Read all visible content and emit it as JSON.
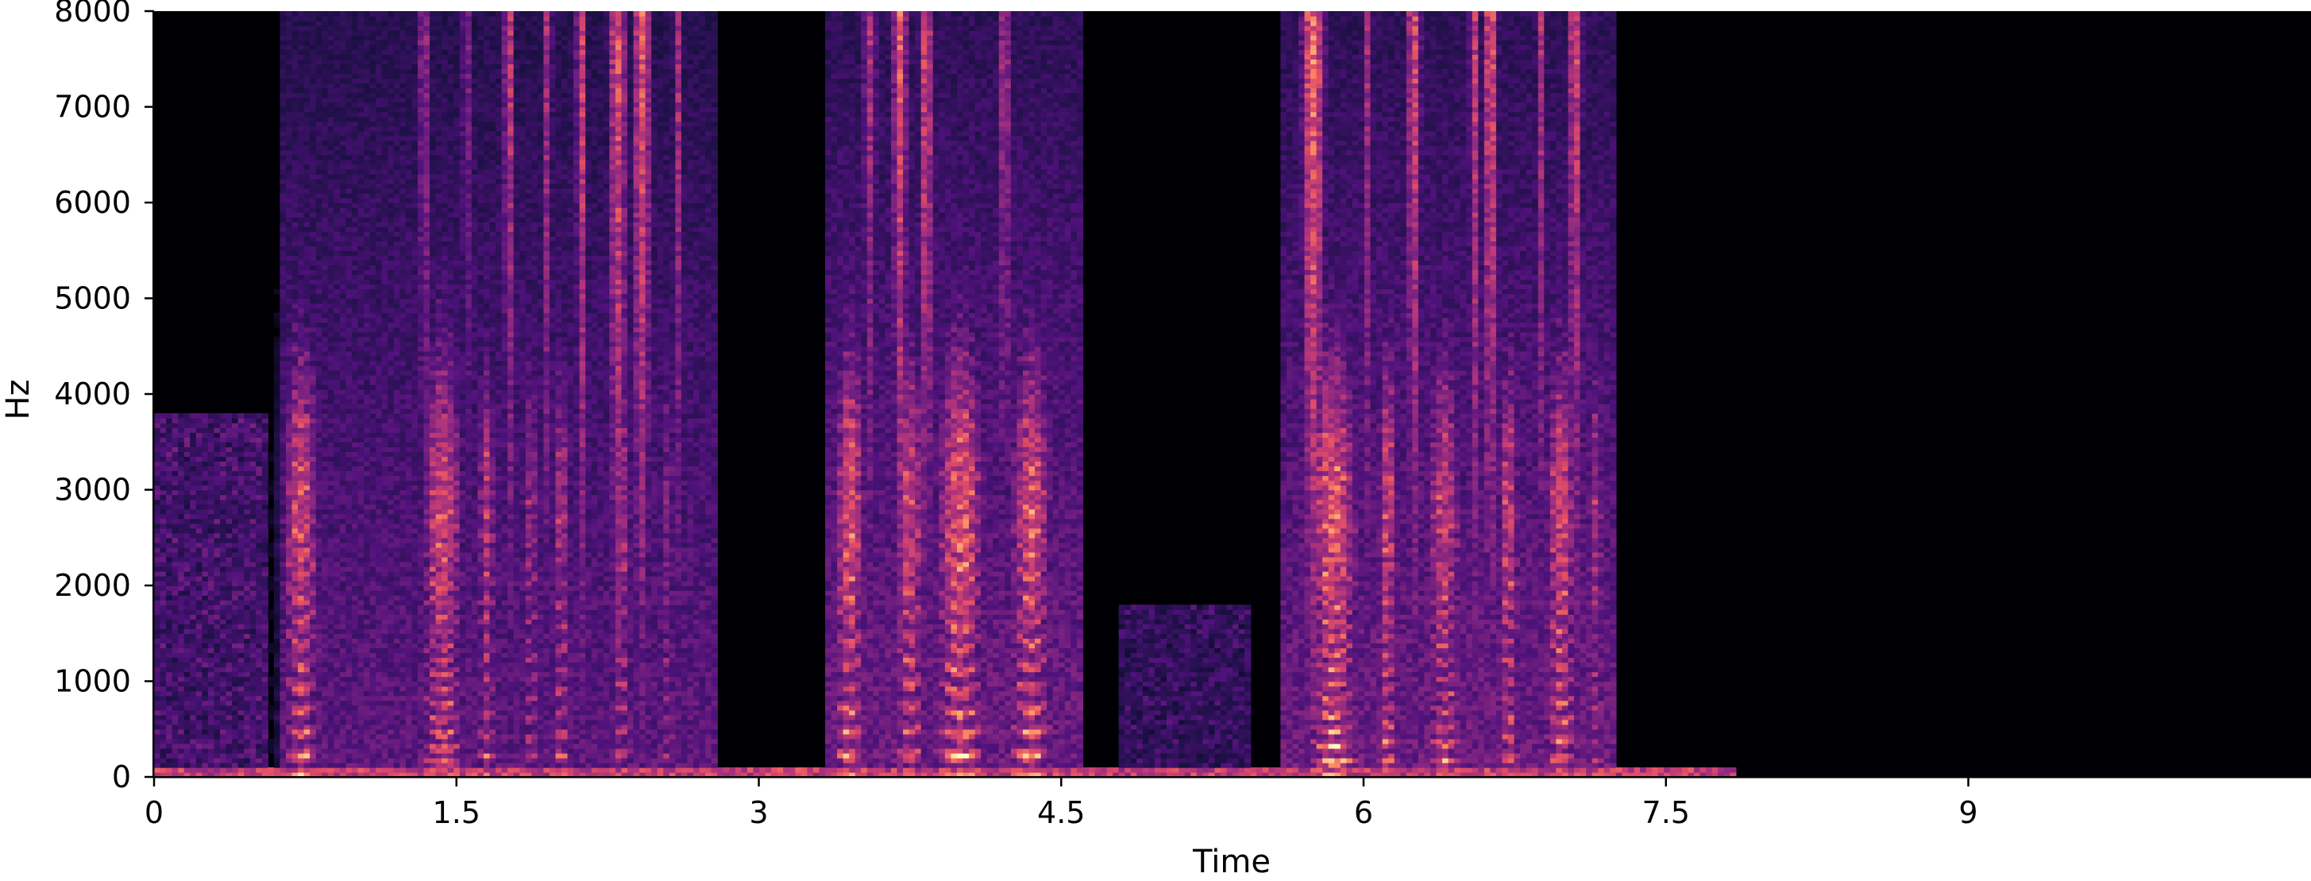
{
  "chart_data": {
    "type": "heatmap",
    "title": "",
    "xlabel": "Time",
    "ylabel": "Hz",
    "xlim": [
      0,
      10.7
    ],
    "ylim": [
      0,
      8000
    ],
    "x_ticks": [
      0,
      1.5,
      3,
      4.5,
      6,
      7.5,
      9
    ],
    "x_tick_labels": [
      "0",
      "1.5",
      "3",
      "4.5",
      "6",
      "7.5",
      "9"
    ],
    "y_ticks": [
      0,
      1000,
      2000,
      3000,
      4000,
      5000,
      6000,
      7000,
      8000
    ],
    "y_tick_labels": [
      "0",
      "1000",
      "2000",
      "3000",
      "4000",
      "5000",
      "6000",
      "7000",
      "8000"
    ],
    "colormap": "magma",
    "colors": [
      "#000004",
      "#1c1044",
      "#4f127b",
      "#812581",
      "#b5367a",
      "#e55064",
      "#fb8761",
      "#fec287",
      "#fcfdbf"
    ],
    "grid": false,
    "legend": "none",
    "audio_end_time": 7.85,
    "speech_segments": [
      {
        "start": 0.62,
        "end": 2.78,
        "intensity": 0.85
      },
      {
        "start": 3.32,
        "end": 4.62,
        "intensity": 0.95
      },
      {
        "start": 5.6,
        "end": 7.25,
        "intensity": 0.95
      }
    ],
    "low_noise_segments": [
      {
        "start": 0.0,
        "end": 0.55,
        "max_hz": 3800,
        "intensity": 0.3
      },
      {
        "start": 4.8,
        "end": 5.45,
        "max_hz": 1800,
        "intensity": 0.25
      }
    ],
    "voiced_bursts": [
      {
        "time": 0.73,
        "f0": 230,
        "strength": 0.9,
        "width": 0.11
      },
      {
        "time": 1.43,
        "f0": 150,
        "strength": 0.9,
        "width": 0.12
      },
      {
        "time": 1.65,
        "f0": 210,
        "strength": 0.8,
        "width": 0.05
      },
      {
        "time": 1.87,
        "f0": 200,
        "strength": 0.7,
        "width": 0.04
      },
      {
        "time": 2.02,
        "f0": 220,
        "strength": 0.75,
        "width": 0.05
      },
      {
        "time": 2.32,
        "f0": 240,
        "strength": 0.7,
        "width": 0.06
      },
      {
        "time": 2.55,
        "f0": 200,
        "strength": 0.6,
        "width": 0.04
      },
      {
        "time": 3.45,
        "f0": 230,
        "strength": 0.95,
        "width": 0.09
      },
      {
        "time": 3.75,
        "f0": 240,
        "strength": 0.9,
        "width": 0.08
      },
      {
        "time": 4.0,
        "f0": 220,
        "strength": 1.0,
        "width": 0.14
      },
      {
        "time": 4.35,
        "f0": 230,
        "strength": 0.95,
        "width": 0.12
      },
      {
        "time": 5.85,
        "f0": 160,
        "strength": 1.0,
        "width": 0.14
      },
      {
        "time": 6.12,
        "f0": 180,
        "strength": 0.9,
        "width": 0.06
      },
      {
        "time": 6.4,
        "f0": 170,
        "strength": 0.85,
        "width": 0.1
      },
      {
        "time": 6.72,
        "f0": 200,
        "strength": 0.85,
        "width": 0.06
      },
      {
        "time": 6.98,
        "f0": 190,
        "strength": 0.9,
        "width": 0.09
      },
      {
        "time": 7.15,
        "f0": 180,
        "strength": 0.7,
        "width": 0.05
      }
    ],
    "fricative_bursts": [
      {
        "time": 1.34,
        "strength": 0.6,
        "width": 0.03
      },
      {
        "time": 1.55,
        "strength": 0.5,
        "width": 0.03
      },
      {
        "time": 1.76,
        "strength": 0.7,
        "width": 0.03
      },
      {
        "time": 1.95,
        "strength": 0.6,
        "width": 0.03
      },
      {
        "time": 2.12,
        "strength": 0.75,
        "width": 0.03
      },
      {
        "time": 2.3,
        "strength": 0.8,
        "width": 0.05
      },
      {
        "time": 2.42,
        "strength": 0.8,
        "width": 0.05
      },
      {
        "time": 2.6,
        "strength": 0.6,
        "width": 0.03
      },
      {
        "time": 3.55,
        "strength": 0.6,
        "width": 0.04
      },
      {
        "time": 3.7,
        "strength": 0.8,
        "width": 0.04
      },
      {
        "time": 3.83,
        "strength": 0.75,
        "width": 0.04
      },
      {
        "time": 4.22,
        "strength": 0.6,
        "width": 0.04
      },
      {
        "time": 5.75,
        "strength": 0.9,
        "width": 0.06
      },
      {
        "time": 6.02,
        "strength": 0.6,
        "width": 0.03
      },
      {
        "time": 6.25,
        "strength": 0.75,
        "width": 0.04
      },
      {
        "time": 6.55,
        "strength": 0.7,
        "width": 0.03
      },
      {
        "time": 6.63,
        "strength": 0.8,
        "width": 0.04
      },
      {
        "time": 6.88,
        "strength": 0.6,
        "width": 0.03
      },
      {
        "time": 7.05,
        "strength": 0.75,
        "width": 0.04
      }
    ]
  }
}
